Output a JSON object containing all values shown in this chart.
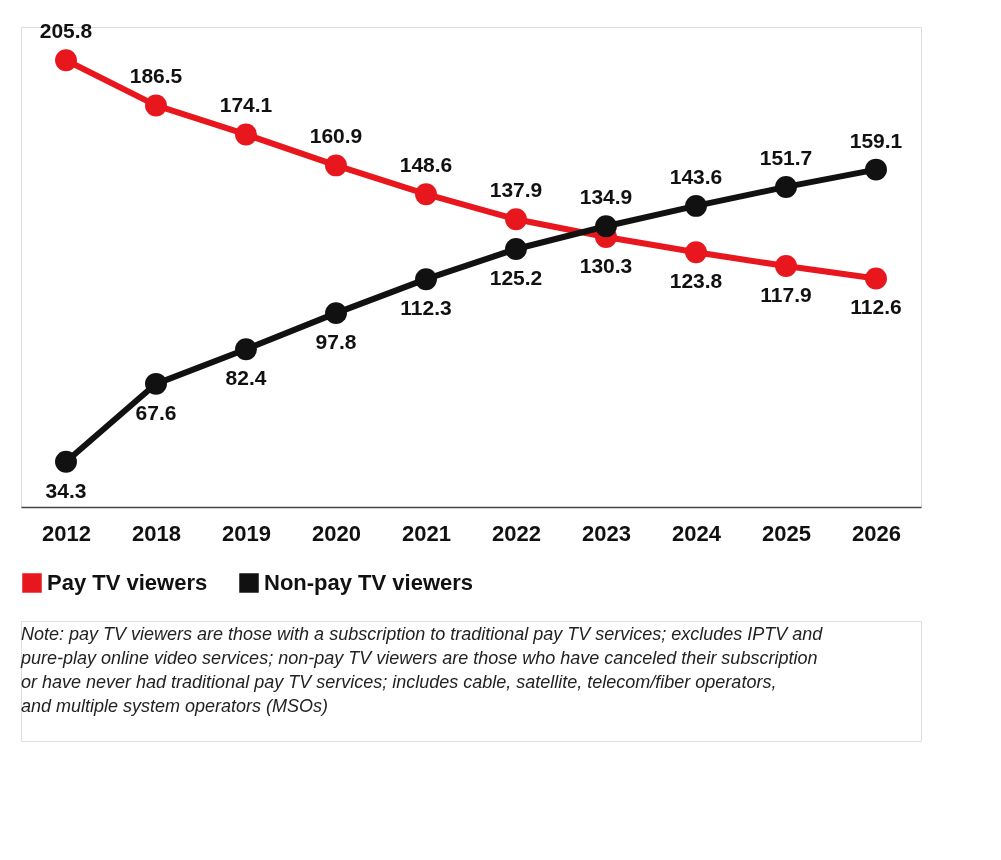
{
  "chart_data": {
    "type": "line",
    "categories": [
      "2012",
      "2018",
      "2019",
      "2020",
      "2021",
      "2022",
      "2023",
      "2024",
      "2025",
      "2026"
    ],
    "series": [
      {
        "name": "Pay TV viewers",
        "color": "#e8161d",
        "values": [
          205.8,
          186.5,
          174.1,
          160.9,
          148.6,
          137.9,
          130.3,
          123.8,
          117.9,
          112.6
        ]
      },
      {
        "name": "Non-pay TV viewers",
        "color": "#111111",
        "values": [
          34.3,
          67.6,
          82.4,
          97.8,
          112.3,
          125.2,
          134.9,
          143.6,
          151.7,
          159.1
        ]
      }
    ],
    "ylim": [
      15,
      220
    ],
    "data_labels": true,
    "marker": "circle",
    "line_style": "solid",
    "grid": false,
    "legend": "bottom left",
    "tick_labels": "x",
    "annotations": [
      "Note: pay TV viewers are those with a subscription to traditional pay TV services; excludes IPTV and pure-play online video services; non-pay TV viewers are those who have canceled their subscription or have never had traditional pay TV services; includes cable, satellite, telecom/fiber operators, and multiple system operators (MSOs)"
    ]
  }
}
